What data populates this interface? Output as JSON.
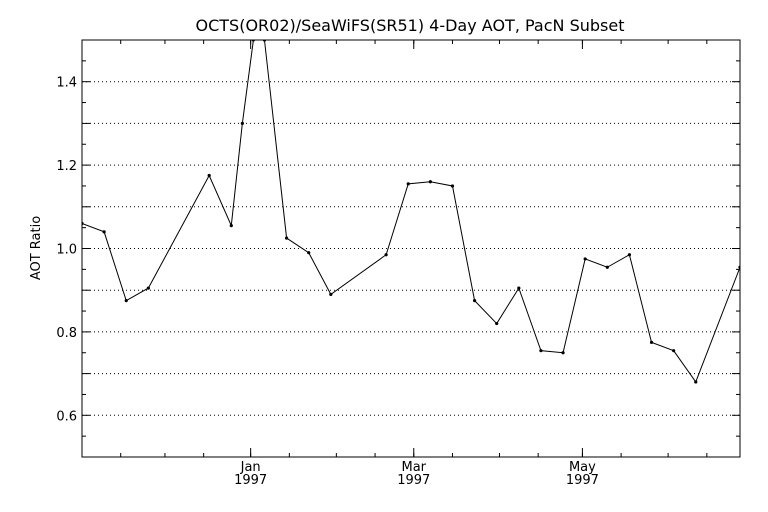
{
  "chart_data": {
    "type": "line",
    "title": "OCTS(OR02)/SeaWiFS(SR51) 4-Day AOT, PacN Subset",
    "xlabel": "",
    "ylabel": "AOT Ratio",
    "ylim": [
      0.5,
      1.5
    ],
    "xlim": [
      "1996-11-01",
      "1997-06-27"
    ],
    "grid": "horizontal-dotted",
    "y_ticks": [
      0.6,
      0.8,
      1.0,
      1.2,
      1.4
    ],
    "y_tick_labels": [
      "0.6",
      "0.8",
      "1.0",
      "1.2",
      "1.4"
    ],
    "x_ticks": [
      {
        "date": "1997-01-01",
        "month": "Jan",
        "year": "1997"
      },
      {
        "date": "1997-03-01",
        "month": "Mar",
        "year": "1997"
      },
      {
        "date": "1997-05-01",
        "month": "May",
        "year": "1997"
      }
    ],
    "series": [
      {
        "color": "#000000",
        "points": [
          {
            "x": "1996-11-01",
            "y": 1.06
          },
          {
            "x": "1996-11-09",
            "y": 1.04
          },
          {
            "x": "1996-11-17",
            "y": 0.875
          },
          {
            "x": "1996-11-25",
            "y": 0.905
          },
          {
            "x": "1996-12-17",
            "y": 1.175
          },
          {
            "x": "1996-12-25",
            "y": 1.055
          },
          {
            "x": "1996-12-29",
            "y": 1.3
          },
          {
            "x": "1997-01-02",
            "y": 1.5
          },
          {
            "x": "1997-01-06",
            "y": 1.5
          },
          {
            "x": "1997-01-14",
            "y": 1.025
          },
          {
            "x": "1997-01-22",
            "y": 0.99
          },
          {
            "x": "1997-01-30",
            "y": 0.89
          },
          {
            "x": "1997-02-19",
            "y": 0.985
          },
          {
            "x": "1997-02-27",
            "y": 1.155
          },
          {
            "x": "1997-03-07",
            "y": 1.16
          },
          {
            "x": "1997-03-15",
            "y": 1.15
          },
          {
            "x": "1997-03-23",
            "y": 0.875
          },
          {
            "x": "1997-03-31",
            "y": 0.82
          },
          {
            "x": "1997-04-08",
            "y": 0.905
          },
          {
            "x": "1997-04-16",
            "y": 0.755
          },
          {
            "x": "1997-04-24",
            "y": 0.75
          },
          {
            "x": "1997-05-02",
            "y": 0.975
          },
          {
            "x": "1997-05-10",
            "y": 0.955
          },
          {
            "x": "1997-05-18",
            "y": 0.985
          },
          {
            "x": "1997-05-26",
            "y": 0.775
          },
          {
            "x": "1997-06-03",
            "y": 0.755
          },
          {
            "x": "1997-06-11",
            "y": 0.68
          },
          {
            "x": "1997-06-27",
            "y": 0.955
          }
        ]
      }
    ]
  }
}
